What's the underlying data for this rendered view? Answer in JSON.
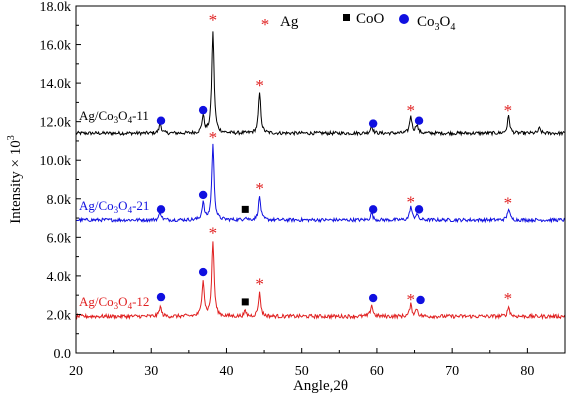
{
  "chart_data": {
    "type": "line",
    "title": "",
    "xlabel": "Angle,2θ",
    "ylabel": "Intensity × 10",
    "ylabel_superscript": "3",
    "xlim": [
      20,
      85
    ],
    "ylim": [
      0,
      18000
    ],
    "x_ticks": [
      "20",
      "30",
      "40",
      "50",
      "60",
      "70",
      "80"
    ],
    "y_ticks": [
      "0.0",
      "2.0k",
      "4.0k",
      "6.0k",
      "8.0k",
      "10.0k",
      "12.0k",
      "14.0k",
      "16.0k",
      "18.0k"
    ],
    "grid": false,
    "legend_position": "top-right",
    "legend": [
      {
        "symbol": "star",
        "label": "Ag",
        "color": "#e02020"
      },
      {
        "symbol": "square",
        "label": "CoO",
        "color": "#000000"
      },
      {
        "symbol": "circle",
        "label_main": "Co",
        "label_sub": "3",
        "label_tail": "O",
        "label_sub2": "4",
        "color": "#1010e0"
      }
    ],
    "series": [
      {
        "name": "Ag/Co3O4-11",
        "label_parts": [
          "Ag/Co",
          "3",
          "O",
          "4",
          "-11"
        ],
        "color": "#000000",
        "baseline": 11400,
        "noise": 90,
        "peaks": [
          {
            "x": 31.2,
            "y": 11900
          },
          {
            "x": 36.9,
            "y": 12300
          },
          {
            "x": 38.2,
            "y": 16700
          },
          {
            "x": 44.4,
            "y": 13500
          },
          {
            "x": 59.3,
            "y": 11800
          },
          {
            "x": 64.5,
            "y": 12300
          },
          {
            "x": 65.3,
            "y": 11850
          },
          {
            "x": 77.5,
            "y": 12300
          },
          {
            "x": 81.6,
            "y": 11650
          }
        ],
        "markers": [
          {
            "x": 31.3,
            "y": 12050,
            "type": "circle"
          },
          {
            "x": 36.9,
            "y": 12600,
            "type": "circle"
          },
          {
            "x": 38.2,
            "y": 17300,
            "type": "star"
          },
          {
            "x": 44.4,
            "y": 13900,
            "type": "star"
          },
          {
            "x": 59.5,
            "y": 11900,
            "type": "circle"
          },
          {
            "x": 64.5,
            "y": 12600,
            "type": "star"
          },
          {
            "x": 65.6,
            "y": 12050,
            "type": "circle"
          },
          {
            "x": 77.4,
            "y": 12600,
            "type": "star"
          }
        ]
      },
      {
        "name": "Ag/Co3O4-21",
        "label_parts": [
          "Ag/Co",
          "3",
          "O",
          "4",
          "-21"
        ],
        "color": "#1010e0",
        "baseline": 6900,
        "noise": 90,
        "peaks": [
          {
            "x": 31.2,
            "y": 7300
          },
          {
            "x": 36.9,
            "y": 7800
          },
          {
            "x": 38.2,
            "y": 10800
          },
          {
            "x": 42.5,
            "y": 7050
          },
          {
            "x": 44.4,
            "y": 8100
          },
          {
            "x": 59.3,
            "y": 7250
          },
          {
            "x": 64.5,
            "y": 7600
          },
          {
            "x": 65.3,
            "y": 7200
          },
          {
            "x": 77.5,
            "y": 7500
          }
        ],
        "markers": [
          {
            "x": 31.3,
            "y": 7450,
            "type": "circle"
          },
          {
            "x": 36.9,
            "y": 8200,
            "type": "circle"
          },
          {
            "x": 38.2,
            "y": 11200,
            "type": "star"
          },
          {
            "x": 42.5,
            "y": 7450,
            "type": "square"
          },
          {
            "x": 44.4,
            "y": 8550,
            "type": "star"
          },
          {
            "x": 59.5,
            "y": 7450,
            "type": "circle"
          },
          {
            "x": 64.5,
            "y": 7850,
            "type": "star"
          },
          {
            "x": 65.6,
            "y": 7450,
            "type": "circle"
          },
          {
            "x": 77.4,
            "y": 7800,
            "type": "star"
          }
        ]
      },
      {
        "name": "Ag/Co3O4-12",
        "label_parts": [
          "Ag/Co",
          "3",
          "O",
          "4",
          "-12"
        ],
        "color": "#e02020",
        "baseline": 1900,
        "noise": 100,
        "peaks": [
          {
            "x": 31.2,
            "y": 2400
          },
          {
            "x": 36.9,
            "y": 3800
          },
          {
            "x": 38.2,
            "y": 5800
          },
          {
            "x": 42.5,
            "y": 2150
          },
          {
            "x": 44.4,
            "y": 3100
          },
          {
            "x": 59.3,
            "y": 2500
          },
          {
            "x": 64.5,
            "y": 2500
          },
          {
            "x": 65.3,
            "y": 2300
          },
          {
            "x": 77.5,
            "y": 2400
          }
        ],
        "markers": [
          {
            "x": 31.3,
            "y": 2900,
            "type": "circle"
          },
          {
            "x": 36.9,
            "y": 4200,
            "type": "circle"
          },
          {
            "x": 38.2,
            "y": 6250,
            "type": "star"
          },
          {
            "x": 42.5,
            "y": 2650,
            "type": "square"
          },
          {
            "x": 44.4,
            "y": 3600,
            "type": "star"
          },
          {
            "x": 59.5,
            "y": 2850,
            "type": "circle"
          },
          {
            "x": 64.5,
            "y": 2800,
            "type": "star"
          },
          {
            "x": 65.8,
            "y": 2750,
            "type": "circle"
          },
          {
            "x": 77.4,
            "y": 2850,
            "type": "star"
          }
        ]
      }
    ]
  }
}
